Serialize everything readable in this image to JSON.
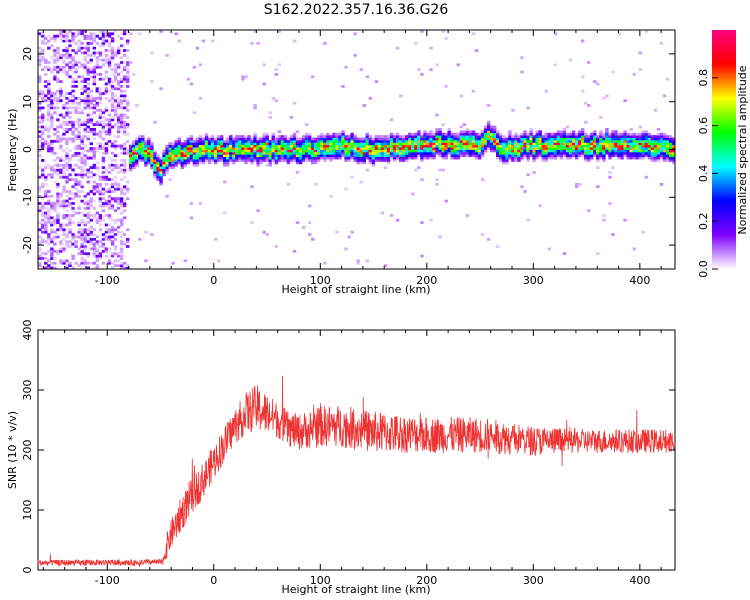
{
  "title": "S162.2022.357.16.36.G26",
  "colors": {
    "snr_line": "#ee3333",
    "axis": "#000000"
  },
  "chart_data": [
    {
      "type": "heatmap",
      "name": "spectrogram",
      "xlabel": "Height of straight line (km)",
      "ylabel": "Frequency (Hz)",
      "xlim": [
        -165,
        433
      ],
      "ylim": [
        -25,
        25
      ],
      "xticks": [
        -100,
        0,
        100,
        200,
        300,
        400
      ],
      "yticks": [
        -20,
        -10,
        0,
        10,
        20
      ],
      "xtick_labels": [
        "-100",
        "0",
        "100",
        "200",
        "300",
        "400"
      ],
      "ytick_labels": [
        "-20",
        "-10",
        "0",
        "10",
        "20"
      ],
      "noise_region_x": [
        -165,
        -80
      ],
      "ridge": {
        "x": [
          -80,
          -70,
          -60,
          -50,
          -40,
          -30,
          -20,
          0,
          50,
          100,
          120,
          150,
          200,
          250,
          260,
          270,
          300,
          350,
          400,
          433
        ],
        "freq_hz": [
          -2,
          0,
          -1,
          -4,
          -1,
          -1,
          0,
          0,
          0,
          0,
          1,
          0,
          1,
          1,
          3,
          0,
          1,
          1,
          1,
          0
        ]
      },
      "colorbar": {
        "label": "Normalized spectral amplitude",
        "range": [
          0.0,
          1.0
        ],
        "ticks": [
          0.0,
          0.2,
          0.4,
          0.6,
          0.8
        ],
        "tick_labels": [
          "0.0",
          "0.2",
          "0.4",
          "0.6",
          "0.8"
        ],
        "colormap": [
          "#ffffff",
          "#7f00ff",
          "#0000ff",
          "#00ffff",
          "#00ff00",
          "#ffff00",
          "#ff0000",
          "#ff0080"
        ]
      }
    },
    {
      "type": "line",
      "name": "snr",
      "xlabel": "Height of straight line (km)",
      "ylabel": "SNR (10 * v/v)",
      "xlim": [
        -165,
        433
      ],
      "ylim": [
        0,
        400
      ],
      "xticks": [
        -100,
        0,
        100,
        200,
        300,
        400
      ],
      "yticks": [
        0,
        100,
        200,
        300,
        400
      ],
      "xtick_labels": [
        "-100",
        "0",
        "100",
        "200",
        "300",
        "400"
      ],
      "ytick_labels": [
        "0",
        "100",
        "200",
        "300",
        "400"
      ],
      "series": [
        {
          "x": [
            -165,
            -140,
            -120,
            -100,
            -80,
            -60,
            -48,
            -45,
            -40,
            -30,
            -20,
            -10,
            0,
            10,
            20,
            30,
            40,
            50,
            60,
            70,
            80,
            100,
            120,
            150,
            200,
            250,
            300,
            350,
            400,
            433
          ],
          "y": [
            12,
            12,
            12,
            13,
            12,
            13,
            13,
            35,
            60,
            95,
            125,
            150,
            180,
            210,
            240,
            260,
            270,
            260,
            250,
            235,
            230,
            240,
            240,
            230,
            225,
            225,
            215,
            215,
            215,
            215
          ],
          "noise_amplitude": [
            5,
            5,
            5,
            5,
            5,
            5,
            5,
            20,
            25,
            30,
            30,
            30,
            30,
            30,
            30,
            35,
            40,
            35,
            30,
            30,
            30,
            35,
            35,
            35,
            30,
            30,
            25,
            20,
            20,
            20
          ]
        }
      ]
    }
  ]
}
